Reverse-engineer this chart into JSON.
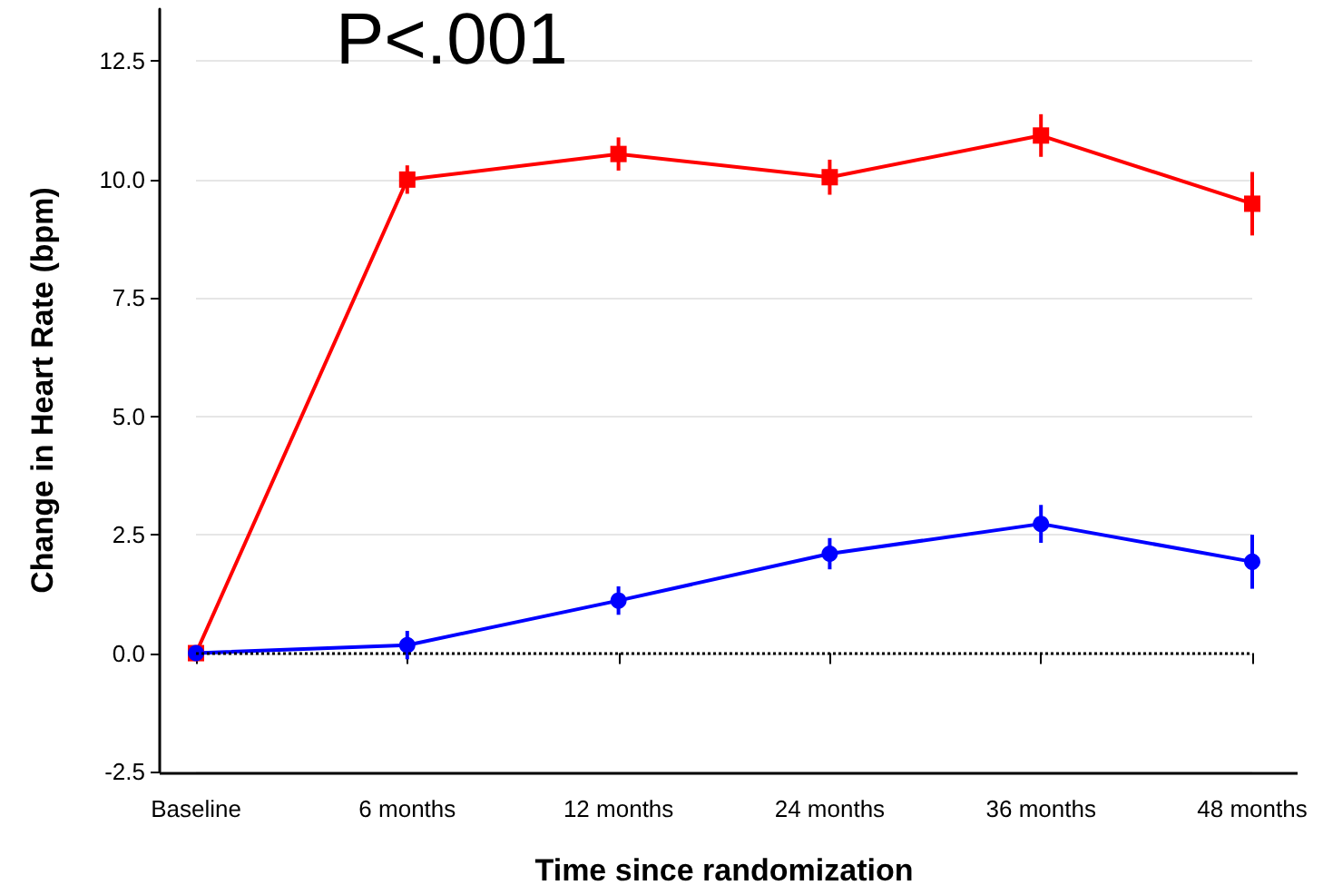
{
  "chart_data": {
    "type": "line",
    "xlabel": "Time since randomization",
    "ylabel": "Change in Heart Rate (bpm)",
    "annotations": [
      "P<.001"
    ],
    "categories": [
      "Baseline",
      "6 months",
      "12 months",
      "24 months",
      "36 months",
      "48 months"
    ],
    "series": [
      {
        "color": "#ff0000",
        "marker": "square",
        "values": [
          0,
          10.0,
          10.54,
          10.05,
          10.93,
          9.49
        ],
        "errors": [
          null,
          0.3,
          0.35,
          0.37,
          0.45,
          0.67
        ]
      },
      {
        "color": "#0000ff",
        "marker": "circle",
        "values": [
          0,
          0.17,
          1.11,
          2.1,
          2.73,
          1.93
        ],
        "errors": [
          null,
          0.3,
          0.3,
          0.33,
          0.4,
          0.57
        ]
      }
    ],
    "ylim": [
      -2.5,
      13.6
    ],
    "yticks": [
      -2.5,
      {
        "value": 0,
        "label": "0.0"
      },
      2.5,
      {
        "value": 5,
        "label": "5.0"
      },
      7.5,
      {
        "value": 10,
        "label": "10.0"
      },
      12.5
    ],
    "grid": "y",
    "line_style": "solid",
    "ref_lines": [
      {
        "axis": "y",
        "value": 0,
        "color": "#000000",
        "line_style": "dotted"
      }
    ]
  }
}
